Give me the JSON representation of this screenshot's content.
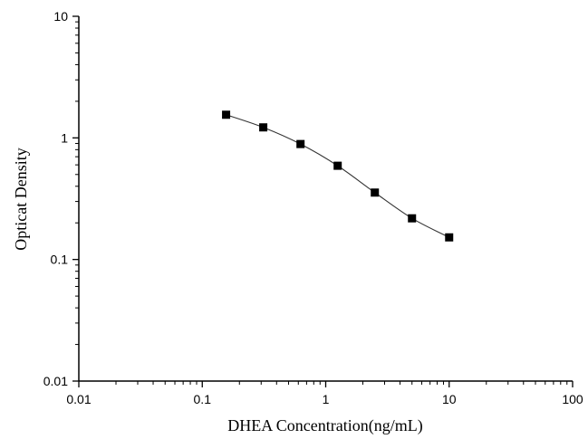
{
  "chart_data": {
    "type": "line",
    "xlabel": "DHEA Concentration(ng/mL)",
    "ylabel": "Opticat Density",
    "x_scale": "log",
    "y_scale": "log",
    "xlim": [
      0.01,
      100
    ],
    "ylim": [
      0.01,
      10
    ],
    "x_ticks": [
      "0.01",
      "0.1",
      "1",
      "10",
      "100"
    ],
    "y_ticks": [
      "0.01",
      "0.1",
      "1",
      "10"
    ],
    "grid": false,
    "series": [
      {
        "marker": "square",
        "color": "#000000",
        "x": [
          0.156,
          0.312,
          0.625,
          1.25,
          2.5,
          5,
          10
        ],
        "y": [
          1.55,
          1.22,
          0.89,
          0.59,
          0.355,
          0.218,
          0.152
        ]
      }
    ]
  }
}
